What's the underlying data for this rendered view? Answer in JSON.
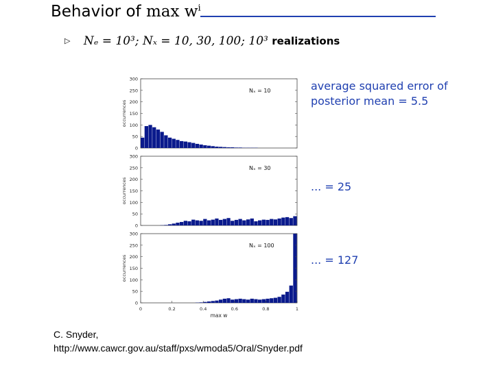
{
  "slide": {
    "title_word": "Behavior of",
    "title_math": "max w",
    "title_sup": "i",
    "bullet": "Nₑ = 10³; Nₓ = 10, 30, 100; 10³",
    "bullet_suffix": "realizations",
    "notes": [
      "average squared error of",
      "posterior mean = 5.5",
      "... = 25",
      "... = 127"
    ],
    "credit_line1": "C. Snyder,",
    "credit_line2": "http://www.cawcr.gov.au/staff/pxs/wmoda5/Oral/Snyder.pdf"
  },
  "chart_data": [
    {
      "type": "bar",
      "annotation": "Nₓ = 10",
      "ylabel": "occurrences",
      "xlabel": "",
      "xlim": [
        0,
        1
      ],
      "ylim": [
        0,
        300
      ],
      "yticks": [
        "0",
        "50",
        "100",
        "150",
        "200",
        "250",
        "300"
      ],
      "xticks": [],
      "bar_color": "#0a1a8c",
      "bin_width": 0.025,
      "x": [
        0.0125,
        0.0375,
        0.0625,
        0.0875,
        0.1125,
        0.1375,
        0.1625,
        0.1875,
        0.2125,
        0.2375,
        0.2625,
        0.2875,
        0.3125,
        0.3375,
        0.3625,
        0.3875,
        0.4125,
        0.4375,
        0.4625,
        0.4875,
        0.5125,
        0.5375,
        0.5625,
        0.5875,
        0.6125,
        0.6375,
        0.6625,
        0.6875,
        0.7125,
        0.7375,
        0.7625,
        0.7875,
        0.8125,
        0.8375,
        0.8625,
        0.8875,
        0.9125,
        0.9375,
        0.9625,
        0.9875
      ],
      "values": [
        45,
        95,
        100,
        90,
        80,
        70,
        55,
        45,
        40,
        35,
        30,
        28,
        25,
        22,
        18,
        15,
        12,
        10,
        8,
        6,
        5,
        4,
        3,
        3,
        2,
        2,
        1,
        1,
        1,
        1,
        0,
        0,
        0,
        0,
        0,
        0,
        0,
        0,
        0,
        0
      ]
    },
    {
      "type": "bar",
      "annotation": "Nₓ = 30",
      "ylabel": "occurrences",
      "xlabel": "",
      "xlim": [
        0,
        1
      ],
      "ylim": [
        0,
        300
      ],
      "yticks": [
        "0",
        "50",
        "100",
        "150",
        "200",
        "250",
        "300"
      ],
      "xticks": [],
      "bar_color": "#0a1a8c",
      "bin_width": 0.025,
      "x": [
        0.0125,
        0.0375,
        0.0625,
        0.0875,
        0.1125,
        0.1375,
        0.1625,
        0.1875,
        0.2125,
        0.2375,
        0.2625,
        0.2875,
        0.3125,
        0.3375,
        0.3625,
        0.3875,
        0.4125,
        0.4375,
        0.4625,
        0.4875,
        0.5125,
        0.5375,
        0.5625,
        0.5875,
        0.6125,
        0.6375,
        0.6625,
        0.6875,
        0.7125,
        0.7375,
        0.7625,
        0.7875,
        0.8125,
        0.8375,
        0.8625,
        0.8875,
        0.9125,
        0.9375,
        0.9625,
        0.9875
      ],
      "values": [
        0,
        0,
        0,
        0,
        0,
        1,
        2,
        5,
        8,
        12,
        15,
        20,
        18,
        25,
        22,
        20,
        28,
        22,
        25,
        30,
        24,
        28,
        32,
        20,
        24,
        28,
        22,
        26,
        30,
        18,
        22,
        25,
        24,
        28,
        26,
        30,
        34,
        36,
        32,
        40
      ]
    },
    {
      "type": "bar",
      "annotation": "Nₓ = 100",
      "ylabel": "occurrences",
      "xlabel": "max w",
      "xlim": [
        0,
        1
      ],
      "ylim": [
        0,
        300
      ],
      "yticks": [
        "0",
        "50",
        "100",
        "150",
        "200",
        "250",
        "300"
      ],
      "xticks": [
        "0",
        "0.2",
        "0.4",
        "0.6",
        "0.8",
        "1"
      ],
      "bar_color": "#0a1a8c",
      "bin_width": 0.025,
      "x": [
        0.0125,
        0.0375,
        0.0625,
        0.0875,
        0.1125,
        0.1375,
        0.1625,
        0.1875,
        0.2125,
        0.2375,
        0.2625,
        0.2875,
        0.3125,
        0.3375,
        0.3625,
        0.3875,
        0.4125,
        0.4375,
        0.4625,
        0.4875,
        0.5125,
        0.5375,
        0.5625,
        0.5875,
        0.6125,
        0.6375,
        0.6625,
        0.6875,
        0.7125,
        0.7375,
        0.7625,
        0.7875,
        0.8125,
        0.8375,
        0.8625,
        0.8875,
        0.9125,
        0.9375,
        0.9625,
        0.9875
      ],
      "values": [
        0,
        0,
        0,
        0,
        0,
        0,
        0,
        0,
        0,
        0,
        0,
        0,
        0,
        0,
        1,
        2,
        4,
        6,
        8,
        10,
        14,
        18,
        20,
        14,
        16,
        18,
        16,
        14,
        18,
        16,
        14,
        16,
        18,
        20,
        22,
        26,
        36,
        48,
        75,
        310
      ]
    }
  ]
}
